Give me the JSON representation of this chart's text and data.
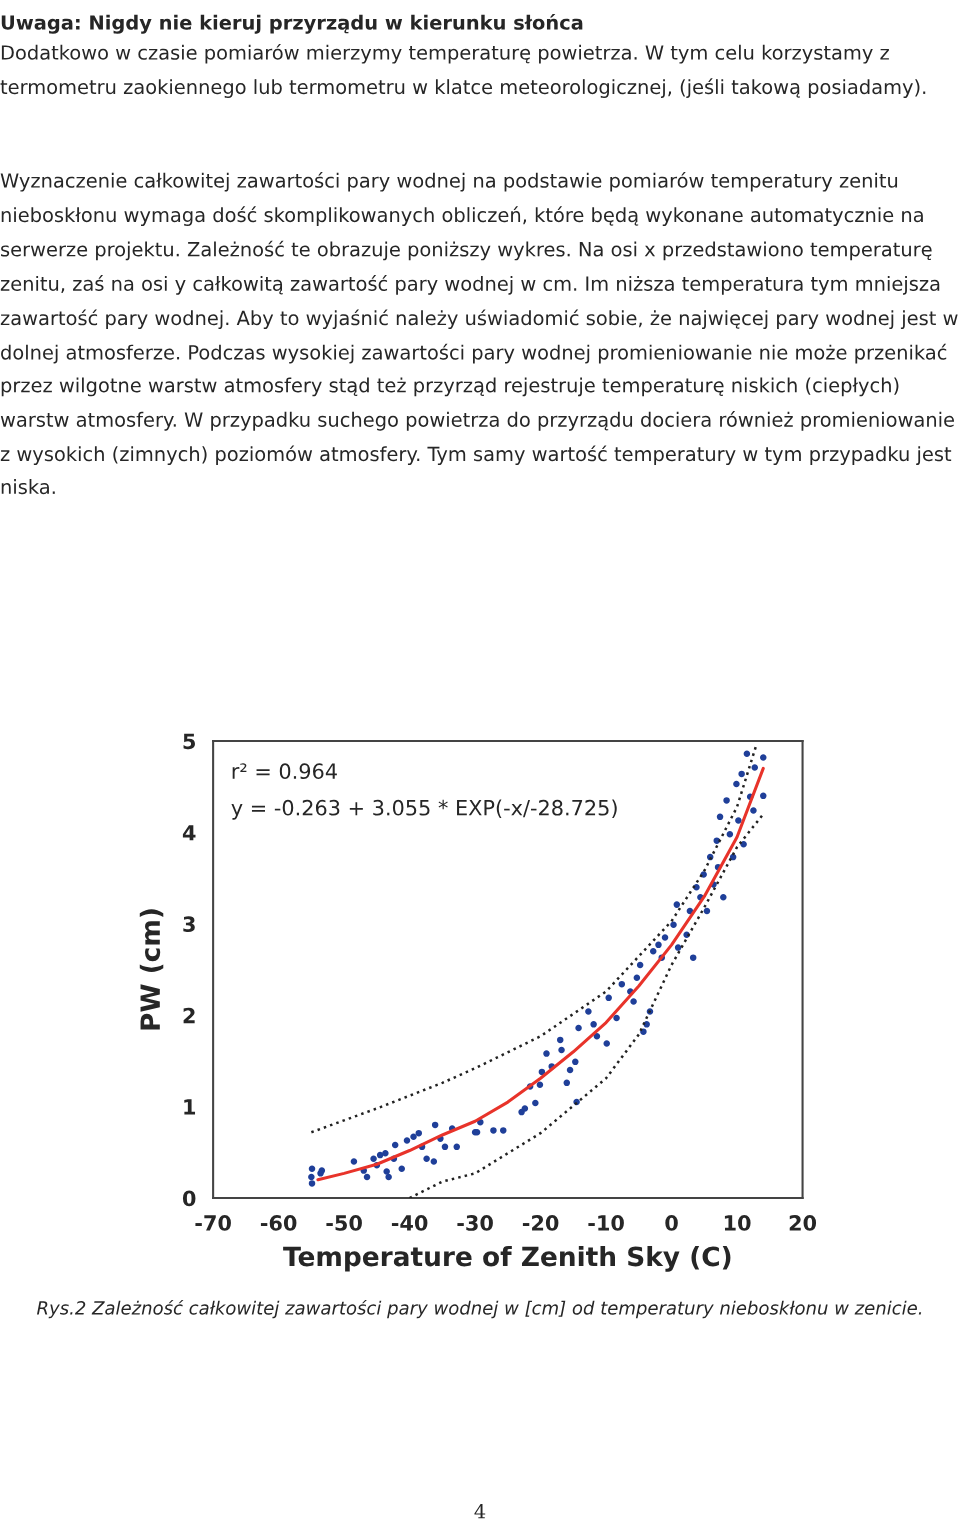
{
  "chart_data": {
    "type": "scatter",
    "title": "Uwaga: Nigdy nie kieruj przyrządu w kierunku słońca",
    "xlabel": "Temperature of Zenith Sky (C)",
    "ylabel": "PW (cm)",
    "xlim": [
      -70,
      20
    ],
    "xticks": [
      -70,
      -60,
      -50,
      -40,
      -30,
      -20,
      -10,
      0,
      10,
      20
    ],
    "ylim": [
      0,
      5
    ],
    "yticks": [
      0,
      1,
      2,
      3,
      4,
      5
    ],
    "grid": false,
    "legend": false,
    "series": [
      {
        "color": "#1f3f99",
        "marker": "circle",
        "x": [
          -54.9,
          -55,
          -54.9,
          -53.4,
          -53.6,
          -47.0,
          -46.5,
          -48.5,
          -45.5,
          -45,
          -44.5,
          -43.7,
          -43.5,
          -43.2,
          -42.4,
          -42.2,
          -41.2,
          -40.4,
          -39.4,
          -38.6,
          -38.1,
          -37.4,
          -36.3,
          -36.1,
          -35.3,
          -34.6,
          -33.5,
          -32.8,
          -30,
          -29.7,
          -29.2,
          -27.2,
          -25.7,
          -22.9,
          -22.4,
          -21.6,
          -20.8,
          -20.1,
          -19.8,
          -19.1,
          -18.3,
          -17.0,
          -16.8,
          -16.0,
          -15.5,
          -14.7,
          -14.5,
          -14.2,
          -12.7,
          -11.9,
          -11.4,
          -9.9,
          -9.6,
          -8.4,
          -7.6,
          -6.3,
          -5.8,
          -5.3,
          -4.8,
          -4.3,
          -3.8,
          -3.3,
          -2.8,
          -2.0,
          -1.5,
          -1.0,
          0.3,
          0.8,
          1.0,
          2.3,
          2.8,
          3.3,
          3.8,
          4.4,
          4.9,
          5.4,
          5.9,
          6.4,
          6.9,
          7.1,
          7.4,
          7.9,
          8.4,
          8.9,
          9.4,
          9.9,
          10.2,
          10.7,
          11.0,
          11.5,
          12.0,
          12.5,
          12.7,
          14.0,
          14.0
        ],
        "values": [
          0.32,
          0.23,
          0.16,
          0.3,
          0.27,
          0.3,
          0.23,
          0.4,
          0.43,
          0.36,
          0.47,
          0.49,
          0.29,
          0.23,
          0.43,
          0.58,
          0.32,
          0.63,
          0.67,
          0.71,
          0.56,
          0.43,
          0.4,
          0.8,
          0.65,
          0.56,
          0.76,
          0.56,
          0.72,
          0.72,
          0.83,
          0.74,
          0.74,
          0.94,
          0.98,
          1.22,
          1.04,
          1.24,
          1.38,
          1.58,
          1.44,
          1.73,
          1.62,
          1.26,
          1.4,
          1.49,
          1.05,
          1.86,
          2.04,
          1.9,
          1.77,
          1.69,
          2.19,
          1.97,
          2.34,
          2.26,
          2.15,
          2.41,
          2.55,
          1.82,
          1.9,
          2.04,
          2.7,
          2.77,
          2.63,
          2.85,
          2.99,
          3.21,
          2.74,
          2.88,
          3.14,
          2.63,
          3.4,
          3.29,
          3.54,
          3.14,
          3.73,
          3.43,
          3.91,
          3.62,
          4.17,
          3.29,
          4.35,
          3.98,
          3.73,
          4.53,
          4.13,
          4.64,
          3.87,
          4.86,
          4.39,
          4.24,
          4.71,
          4.82,
          4.4
        ]
      },
      {
        "type": "line",
        "color": "#e8332a",
        "line_style": "solid",
        "x": [
          -54,
          -50,
          -45,
          -40,
          -35,
          -30,
          -25,
          -20,
          -15,
          -10,
          -5,
          0,
          5,
          10,
          14
        ],
        "values": [
          0.2,
          0.27,
          0.37,
          0.52,
          0.69,
          0.84,
          1.05,
          1.31,
          1.6,
          1.92,
          2.32,
          2.77,
          3.3,
          3.95,
          4.7
        ]
      },
      {
        "type": "line",
        "color": "#222222",
        "line_style": "dotted",
        "x": [
          -55,
          -45,
          -35,
          -30,
          -20,
          -10,
          0,
          5,
          10,
          13
        ],
        "values": [
          0.72,
          0.98,
          1.26,
          1.42,
          1.77,
          2.26,
          3.03,
          3.58,
          4.28,
          4.97
        ]
      },
      {
        "type": "line",
        "color": "#222222",
        "line_style": "dotted",
        "x": [
          -40,
          -35,
          -30,
          -20,
          -10,
          -5,
          0,
          5,
          10,
          14
        ],
        "values": [
          0,
          0.18,
          0.27,
          0.71,
          1.31,
          1.79,
          2.55,
          3.18,
          3.84,
          4.2
        ]
      }
    ],
    "annotations": [
      "Dodatkowo w czasie pomiarów mierzymy temperaturę powietrza. W tym celu korzystamy z termometru zaokiennego lub termometru w klatce meteorologicznej, (jeśli takową posiadamy).",
      "Wyznaczenie całkowitej zawartości pary wodnej na podstawie pomiarów temperatury zenitu nieboskłonu wymaga dość skomplikowanych obliczeń, które będą wykonane automatycznie na serwerze projektu. Zależność te obrazuje poniższy wykres. Na osi x przedstawiono temperaturę zenitu, zaś na osi y całkowitą zawartość pary wodnej w cm. Im niższa temperatura tym mniejsza zawartość pary wodnej. Aby to wyjaśnić należy uświadomić sobie, że najwięcej pary wodnej jest w dolnej atmosferze. Podczas wysokiej zawartości pary wodnej promieniowanie nie może przenikać przez wilgotne warstw atmosfery stąd też przyrząd rejestruje temperaturę niskich (ciepłych) warstw atmosfery. W przypadku suchego powietrza do przyrządu dociera również promieniowanie z wysokich (zimnych) poziomów atmosfery. Tym samy wartość temperatury w tym przypadku jest niska.",
      "r² = 0.964",
      "y = -0.263 + 3.055 * EXP(-x/-28.725)",
      "Rys.2 Zależność całkowitej zawartości pary wodnej w [cm] od temperatury nieboskłonu w zenicie.",
      "4"
    ]
  }
}
